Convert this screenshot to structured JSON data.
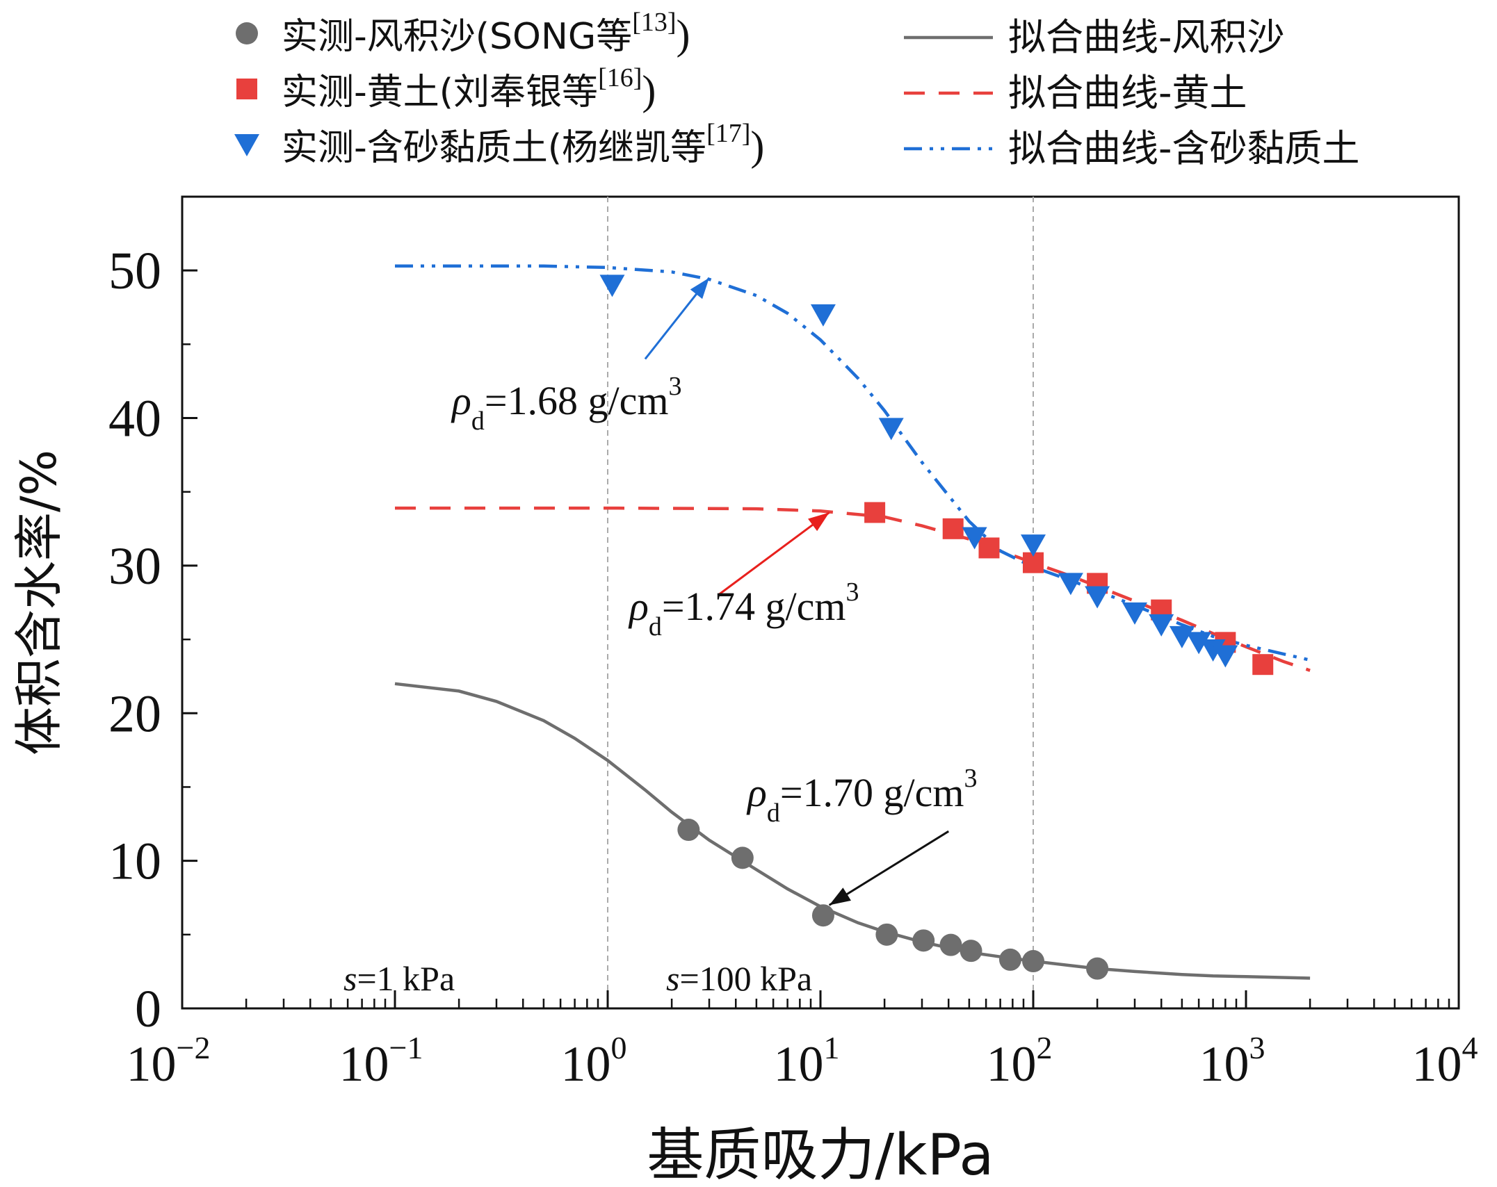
{
  "chart_data": {
    "type": "scatter",
    "x_scale": "log",
    "xlabel": "基质吸力/kPa",
    "ylabel": "体积含水率/%",
    "xlim": [
      0.01,
      10000
    ],
    "ylim": [
      0,
      55
    ],
    "x_ticks": [
      {
        "value": 0.01,
        "base": "10",
        "exp": "−2"
      },
      {
        "value": 0.1,
        "base": "10",
        "exp": "−1"
      },
      {
        "value": 1,
        "base": "10",
        "exp": "0"
      },
      {
        "value": 10,
        "base": "10",
        "exp": "1"
      },
      {
        "value": 100,
        "base": "10",
        "exp": "2"
      },
      {
        "value": 1000,
        "base": "10",
        "exp": "3"
      },
      {
        "value": 10000,
        "base": "10",
        "exp": "4"
      }
    ],
    "y_ticks": [
      0,
      10,
      20,
      30,
      40,
      50
    ],
    "reference_lines": [
      {
        "x": 1,
        "label_var": "s",
        "label_rest": "=1 kPa"
      },
      {
        "x": 100,
        "label_var": "s",
        "label_rest": "=100 kPa"
      }
    ],
    "series": [
      {
        "name": "实测-风积沙(SONG等[13])",
        "legend_main": "实测-风积沙(SONG等",
        "legend_ref": "[13]",
        "legend_tail": ")",
        "kind": "measured",
        "marker": "circle",
        "color": "#6e6e6e",
        "points": [
          [
            2.4,
            12.1
          ],
          [
            4.3,
            10.2
          ],
          [
            10.3,
            6.3
          ],
          [
            20.5,
            5.0
          ],
          [
            30.5,
            4.6
          ],
          [
            41,
            4.3
          ],
          [
            51,
            3.9
          ],
          [
            78,
            3.3
          ],
          [
            100,
            3.2
          ],
          [
            200,
            2.7
          ]
        ]
      },
      {
        "name": "实测-黄土(刘奉银等[16])",
        "legend_main": "实测-黄土(刘奉银等",
        "legend_ref": "[16]",
        "legend_tail": ")",
        "kind": "measured",
        "marker": "square",
        "color": "#e8403d",
        "points": [
          [
            18,
            33.6
          ],
          [
            42,
            32.5
          ],
          [
            62,
            31.2
          ],
          [
            100,
            30.2
          ],
          [
            200,
            28.8
          ],
          [
            400,
            27.0
          ],
          [
            800,
            24.8
          ],
          [
            1200,
            23.3
          ]
        ]
      },
      {
        "name": "实测-含砂黏质土(杨继凯等[17])",
        "legend_main": "实测-含砂黏质土(杨继凯等",
        "legend_ref": "[17]",
        "legend_tail": ")",
        "kind": "measured",
        "marker": "triangle-down",
        "color": "#1f6fd6",
        "points": [
          [
            1.05,
            49.0
          ],
          [
            10.3,
            47.0
          ],
          [
            21.5,
            39.3
          ],
          [
            53,
            31.9
          ],
          [
            100,
            31.4
          ],
          [
            150,
            28.8
          ],
          [
            200,
            27.9
          ],
          [
            300,
            26.8
          ],
          [
            400,
            26.0
          ],
          [
            500,
            25.2
          ],
          [
            600,
            24.8
          ],
          [
            700,
            24.3
          ],
          [
            800,
            23.9
          ]
        ]
      },
      {
        "name": "拟合曲线-风积沙",
        "kind": "fit",
        "line_style": "solid",
        "color": "#6e6e6e",
        "points": [
          [
            0.1,
            22.0
          ],
          [
            0.2,
            21.5
          ],
          [
            0.3,
            20.8
          ],
          [
            0.5,
            19.5
          ],
          [
            0.7,
            18.3
          ],
          [
            1,
            16.8
          ],
          [
            1.5,
            14.8
          ],
          [
            2,
            13.3
          ],
          [
            3,
            11.4
          ],
          [
            5,
            9.4
          ],
          [
            7,
            8.1
          ],
          [
            10,
            6.9
          ],
          [
            15,
            5.8
          ],
          [
            20,
            5.2
          ],
          [
            30,
            4.5
          ],
          [
            50,
            3.8
          ],
          [
            70,
            3.5
          ],
          [
            100,
            3.2
          ],
          [
            150,
            2.9
          ],
          [
            200,
            2.7
          ],
          [
            300,
            2.5
          ],
          [
            500,
            2.3
          ],
          [
            700,
            2.2
          ],
          [
            1000,
            2.15
          ],
          [
            2000,
            2.05
          ]
        ]
      },
      {
        "name": "拟合曲线-黄土",
        "kind": "fit",
        "line_style": "dashed",
        "color": "#e8403d",
        "points": [
          [
            0.1,
            33.9
          ],
          [
            1,
            33.9
          ],
          [
            5,
            33.85
          ],
          [
            10,
            33.7
          ],
          [
            20,
            33.3
          ],
          [
            30,
            32.7
          ],
          [
            50,
            31.8
          ],
          [
            70,
            31.0
          ],
          [
            100,
            30.2
          ],
          [
            150,
            29.3
          ],
          [
            200,
            28.6
          ],
          [
            300,
            27.6
          ],
          [
            500,
            26.3
          ],
          [
            700,
            25.4
          ],
          [
            1000,
            24.5
          ],
          [
            1500,
            23.5
          ],
          [
            2000,
            22.9
          ]
        ]
      },
      {
        "name": "拟合曲线-含砂黏质土",
        "kind": "fit",
        "line_style": "dash-dot-dot",
        "color": "#1f6fd6",
        "points": [
          [
            0.1,
            50.3
          ],
          [
            0.5,
            50.3
          ],
          [
            1,
            50.2
          ],
          [
            2,
            49.9
          ],
          [
            3,
            49.4
          ],
          [
            5,
            48.3
          ],
          [
            7,
            47.1
          ],
          [
            10,
            45.3
          ],
          [
            15,
            42.7
          ],
          [
            20,
            40.5
          ],
          [
            30,
            37.0
          ],
          [
            50,
            33.0
          ],
          [
            70,
            31.0
          ],
          [
            100,
            29.9
          ],
          [
            150,
            29.0
          ],
          [
            200,
            28.3
          ],
          [
            300,
            27.3
          ],
          [
            500,
            26.0
          ],
          [
            700,
            25.2
          ],
          [
            1000,
            24.6
          ],
          [
            2000,
            23.6
          ]
        ]
      }
    ],
    "annotations": [
      {
        "var": "ρ",
        "sub": "d",
        "text": "=1.68 g/cm",
        "sup": "3",
        "color": "#1f6fd6",
        "from": [
          1.5,
          44.0
        ],
        "to": [
          3.0,
          49.5
        ]
      },
      {
        "var": "ρ",
        "sub": "d",
        "text": "=1.74 g/cm",
        "sup": "3",
        "color": "#e8201d",
        "from": [
          3.3,
          28.0
        ],
        "to": [
          11.0,
          33.6
        ]
      },
      {
        "var": "ρ",
        "sub": "d",
        "text": "=1.70 g/cm",
        "sup": "3",
        "color": "#111111",
        "from": [
          40,
          12.0
        ],
        "to": [
          11.0,
          7.0
        ]
      }
    ]
  }
}
